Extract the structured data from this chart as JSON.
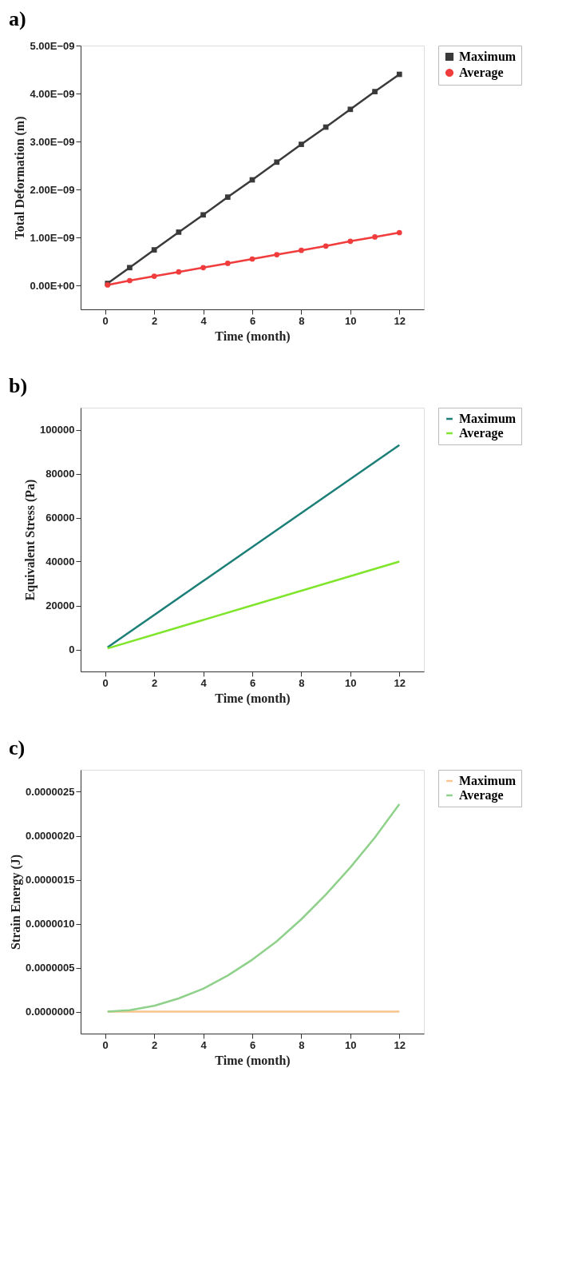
{
  "chart_data": [
    {
      "type": "line",
      "title": "a)",
      "xlabel": "Time (month)",
      "ylabel": "Total Deformation (m)",
      "legend": "top right",
      "grid": false,
      "xlim": [
        -1,
        13
      ],
      "xticks": [
        0,
        2,
        4,
        6,
        8,
        10,
        12
      ],
      "ylim": [
        -5e-10,
        5e-09
      ],
      "yticks": [
        {
          "value": 0,
          "label": "0.00E+00"
        },
        {
          "value": 1e-09,
          "label": "1.00E−09"
        },
        {
          "value": 2e-09,
          "label": "2.00E−09"
        },
        {
          "value": 3e-09,
          "label": "3.00E−09"
        },
        {
          "value": 4e-09,
          "label": "4.00E−09"
        },
        {
          "value": 5e-09,
          "label": "5.00E−09"
        }
      ],
      "x": [
        0.1,
        1,
        2,
        3,
        4,
        5,
        6,
        7,
        8,
        9,
        10,
        11,
        12
      ],
      "series": [
        {
          "name": "Maximum",
          "color": "#3a3a3a",
          "marker": "square",
          "values": [
            4e-11,
            3.7e-10,
            7.4e-10,
            1.11e-09,
            1.47e-09,
            1.84e-09,
            2.2e-09,
            2.57e-09,
            2.94e-09,
            3.3e-09,
            3.67e-09,
            4.04e-09,
            4.4e-09
          ]
        },
        {
          "name": "Average",
          "color": "#f03c3c",
          "marker": "circle",
          "values": [
            1e-11,
            1e-10,
            1.9e-10,
            2.8e-10,
            3.7e-10,
            4.6e-10,
            5.5e-10,
            6.4e-10,
            7.3e-10,
            8.2e-10,
            9.2e-10,
            1.01e-09,
            1.1e-09
          ]
        }
      ]
    },
    {
      "type": "line",
      "title": "b)",
      "xlabel": "Time (month)",
      "ylabel": "Equivalent Stress (Pa)",
      "legend": "top right",
      "grid": false,
      "xlim": [
        -1,
        13
      ],
      "xticks": [
        0,
        2,
        4,
        6,
        8,
        10,
        12
      ],
      "ylim": [
        -10000,
        110000
      ],
      "yticks": [
        0,
        20000,
        40000,
        60000,
        80000,
        100000
      ],
      "x": [
        0.1,
        12
      ],
      "series": [
        {
          "name": "Maximum",
          "color": "#1b7f78",
          "values": [
            1000,
            93000
          ]
        },
        {
          "name": "Average",
          "color": "#7ee52a",
          "values": [
            500,
            40000
          ]
        }
      ]
    },
    {
      "type": "line",
      "title": "c)",
      "xlabel": "Time (month)",
      "ylabel": "Strain Energy (J)",
      "legend": "top right",
      "grid": false,
      "xlim": [
        -1,
        13
      ],
      "xticks": [
        0,
        2,
        4,
        6,
        8,
        10,
        12
      ],
      "ylim": [
        -2.5e-07,
        2.75e-06
      ],
      "yticks": [
        {
          "value": 0,
          "label": "0.0000000"
        },
        {
          "value": 5e-07,
          "label": "0.0000005"
        },
        {
          "value": 1e-06,
          "label": "0.0000010"
        },
        {
          "value": 1.5e-06,
          "label": "0.0000015"
        },
        {
          "value": 2e-06,
          "label": "0.0000020"
        },
        {
          "value": 2.5e-06,
          "label": "0.0000025"
        }
      ],
      "x": [
        0.1,
        1,
        2,
        3,
        4,
        5,
        6,
        7,
        8,
        9,
        10,
        11,
        12
      ],
      "series": [
        {
          "name": "Maximum",
          "color": "#f9c48d",
          "values": [
            0,
            0,
            0,
            0,
            0,
            0,
            0,
            0,
            0,
            0,
            0,
            0,
            0
          ]
        },
        {
          "name": "Average",
          "color": "#8fd18b",
          "values": [
            0,
            1.6e-08,
            6.6e-08,
            1.5e-07,
            2.6e-07,
            4.1e-07,
            5.9e-07,
            8e-07,
            1.05e-06,
            1.33e-06,
            1.64e-06,
            1.98e-06,
            2.36e-06
          ]
        }
      ]
    }
  ]
}
